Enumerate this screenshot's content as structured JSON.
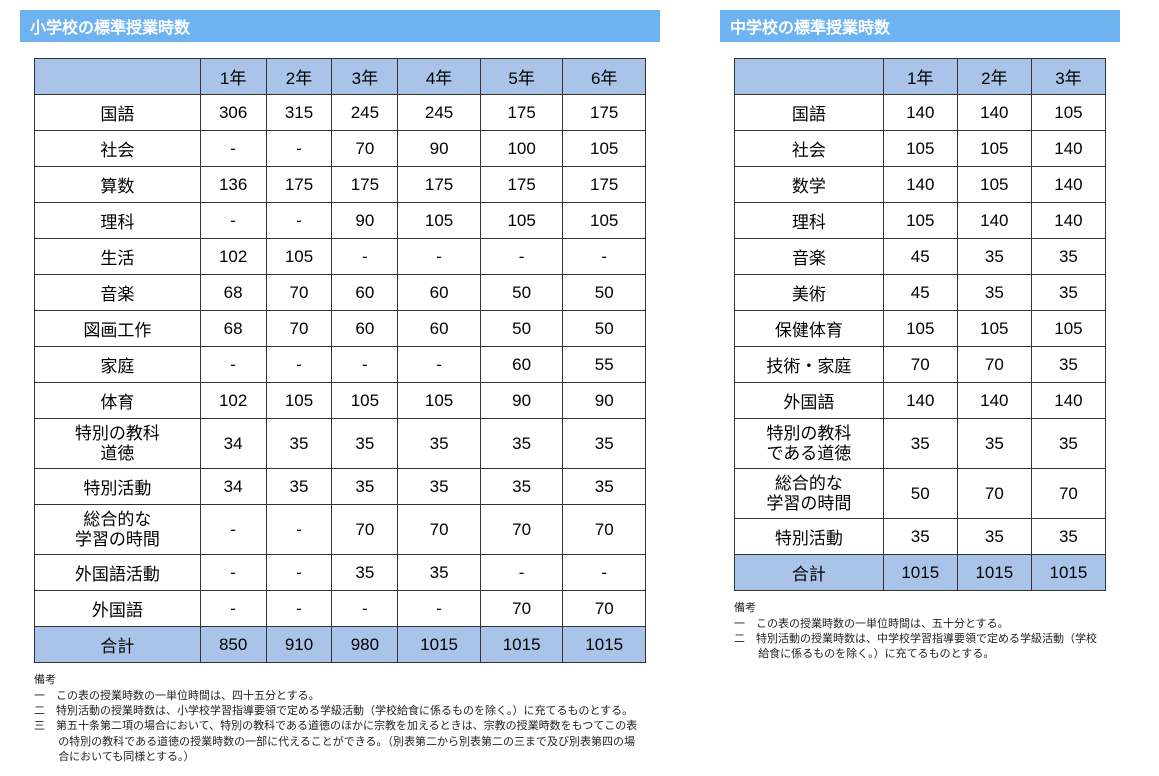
{
  "colors": {
    "title_bg": "#6db3f2",
    "title_text": "#ffffff",
    "header_bg": "#a9c4e8",
    "cell_bg": "#ffffff",
    "border": "#333333",
    "text": "#000000",
    "notes_text": "#222222"
  },
  "typography": {
    "title_fontsize": 16,
    "cell_fontsize": 17,
    "notes_fontsize": 11
  },
  "elementary": {
    "title": "小学校の標準授業時数",
    "columns": [
      "1年",
      "2年",
      "3年",
      "4年",
      "5年",
      "6年"
    ],
    "rows": [
      {
        "label": "国語",
        "values": [
          "306",
          "315",
          "245",
          "245",
          "175",
          "175"
        ]
      },
      {
        "label": "社会",
        "values": [
          "-",
          "-",
          "70",
          "90",
          "100",
          "105"
        ]
      },
      {
        "label": "算数",
        "values": [
          "136",
          "175",
          "175",
          "175",
          "175",
          "175"
        ]
      },
      {
        "label": "理科",
        "values": [
          "-",
          "-",
          "90",
          "105",
          "105",
          "105"
        ]
      },
      {
        "label": "生活",
        "values": [
          "102",
          "105",
          "-",
          "-",
          "-",
          "-"
        ]
      },
      {
        "label": "音楽",
        "values": [
          "68",
          "70",
          "60",
          "60",
          "50",
          "50"
        ]
      },
      {
        "label": "図画工作",
        "values": [
          "68",
          "70",
          "60",
          "60",
          "50",
          "50"
        ]
      },
      {
        "label": "家庭",
        "values": [
          "-",
          "-",
          "-",
          "-",
          "60",
          "55"
        ]
      },
      {
        "label": "体育",
        "values": [
          "102",
          "105",
          "105",
          "105",
          "90",
          "90"
        ]
      },
      {
        "label": "特別の教科\n道徳",
        "two_line": true,
        "values": [
          "34",
          "35",
          "35",
          "35",
          "35",
          "35"
        ]
      },
      {
        "label": "特別活動",
        "values": [
          "34",
          "35",
          "35",
          "35",
          "35",
          "35"
        ]
      },
      {
        "label": "総合的な\n学習の時間",
        "two_line": true,
        "values": [
          "-",
          "-",
          "70",
          "70",
          "70",
          "70"
        ]
      },
      {
        "label": "外国語活動",
        "values": [
          "-",
          "-",
          "35",
          "35",
          "-",
          "-"
        ]
      },
      {
        "label": "外国語",
        "values": [
          "-",
          "-",
          "-",
          "-",
          "70",
          "70"
        ]
      }
    ],
    "total_label": "合計",
    "total_values": [
      "850",
      "910",
      "980",
      "1015",
      "1015",
      "1015"
    ],
    "notes_title": "備考",
    "notes": [
      "一　この表の授業時数の一単位時間は、四十五分とする。",
      "二　特別活動の授業時数は、小学校学習指導要領で定める学級活動（学校給食に係るものを除く。）に充てるものとする。",
      "三　第五十条第二項の場合において、特別の教科である道徳のほかに宗教を加えるときは、宗教の授業時数をもつてこの表の特別の教科である道徳の授業時数の一部に代えることができる。（別表第二から別表第二の三まで及び別表第四の場合においても同様とする。）"
    ]
  },
  "junior": {
    "title": "中学校の標準授業時数",
    "columns": [
      "1年",
      "2年",
      "3年"
    ],
    "rows": [
      {
        "label": "国語",
        "values": [
          "140",
          "140",
          "105"
        ]
      },
      {
        "label": "社会",
        "values": [
          "105",
          "105",
          "140"
        ]
      },
      {
        "label": "数学",
        "values": [
          "140",
          "105",
          "140"
        ]
      },
      {
        "label": "理科",
        "values": [
          "105",
          "140",
          "140"
        ]
      },
      {
        "label": "音楽",
        "values": [
          "45",
          "35",
          "35"
        ]
      },
      {
        "label": "美術",
        "values": [
          "45",
          "35",
          "35"
        ]
      },
      {
        "label": "保健体育",
        "values": [
          "105",
          "105",
          "105"
        ]
      },
      {
        "label": "技術・家庭",
        "values": [
          "70",
          "70",
          "35"
        ]
      },
      {
        "label": "外国語",
        "values": [
          "140",
          "140",
          "140"
        ]
      },
      {
        "label": "特別の教科\nである道徳",
        "two_line": true,
        "values": [
          "35",
          "35",
          "35"
        ]
      },
      {
        "label": "総合的な\n学習の時間",
        "two_line": true,
        "values": [
          "50",
          "70",
          "70"
        ]
      },
      {
        "label": "特別活動",
        "values": [
          "35",
          "35",
          "35"
        ]
      }
    ],
    "total_label": "合計",
    "total_values": [
      "1015",
      "1015",
      "1015"
    ],
    "notes_title": "備考",
    "notes": [
      "一　この表の授業時数の一単位時間は、五十分とする。",
      "二　特別活動の授業時数は、中学校学習指導要領で定める学級活動（学校給食に係るものを除く。）に充てるものとする。"
    ]
  }
}
